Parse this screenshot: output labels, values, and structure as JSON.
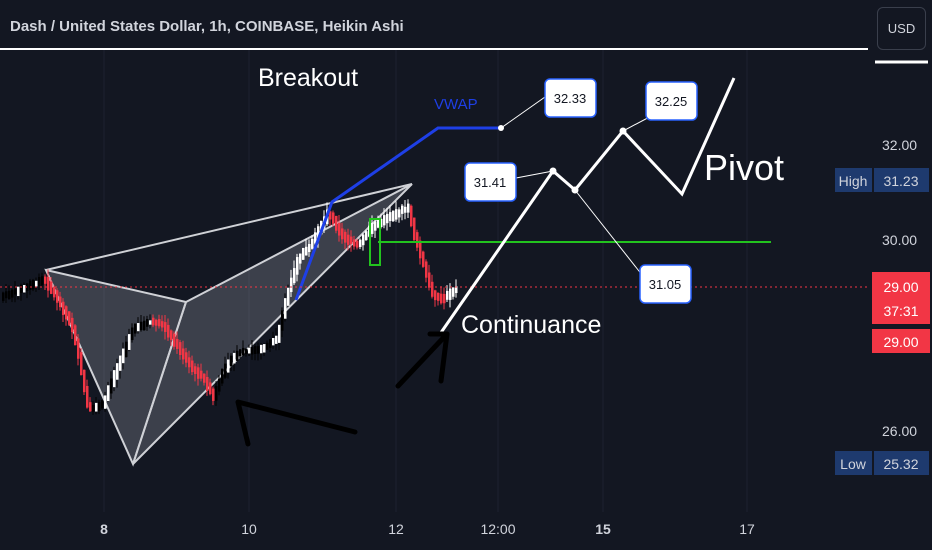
{
  "header": {
    "title": "Dash / United States Dollar, 1h, COINBASE, Heikin Ashi",
    "currency_button": "USD"
  },
  "colors": {
    "background": "#131722",
    "up_candle": "#ffffff",
    "down_candle": "#f23645",
    "price_line": "#f23645",
    "green_line": "#22c31e",
    "vwap_line": "#1e3fe6",
    "pattern_fill": "#9598a1"
  },
  "chart_data": {
    "type": "candlestick",
    "chart_style": "Heikin Ashi",
    "x_tick_labels": [
      "8",
      "10",
      "12",
      "12:00",
      "15",
      "17"
    ],
    "y_tick_labels": [
      "32.00",
      "30.00",
      "26.00"
    ],
    "ylim": [
      24.8,
      33.7
    ],
    "last_price": {
      "value": "29.00",
      "countdown": "37:31"
    },
    "high": {
      "label": "High",
      "value": "31.23"
    },
    "low": {
      "label": "Low",
      "value": "25.32"
    },
    "badge_price": "29.00",
    "annotations": {
      "breakout": "Breakout",
      "vwap": "VWAP",
      "pivot": "Pivot",
      "continuance": "Continuance",
      "boxes": [
        "32.33",
        "31.41",
        "32.25",
        "31.05"
      ]
    },
    "horizontal_levels": {
      "green_line": 29.95,
      "last_price_line": 29.0
    }
  }
}
